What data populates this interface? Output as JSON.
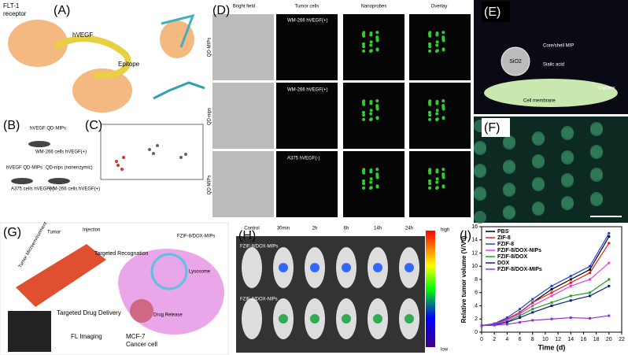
{
  "labels": [
    "(A)",
    "(B)",
    "(C)",
    "(D)",
    "(E)",
    "(F)",
    "(G)",
    "(H)",
    "(I)"
  ],
  "panel_a": {
    "receptor": [
      "FLT-1",
      "receptor"
    ],
    "ligand": "hVEGF",
    "epitope": "Epitope"
  },
  "panel_b": {
    "texts": [
      "hVEGF QD-MIPs",
      "WM-266 cells hVEGF(+)",
      "hVEGF QD-MIPs",
      "QD-nips (nonenzymic)",
      "A375 cells hVEGF(-)",
      "WM-266 cells hVEGF(+)"
    ]
  },
  "panel_d": {
    "columns": [
      "Bright field",
      "Tumor cells",
      "Nanoprobes",
      "Overlay"
    ],
    "rows": [
      "WM-266 hVEGF(+)",
      "WM-266 hVEGF(+)",
      "A375 hVEGF(-)"
    ],
    "probes": [
      "QD-MIPs",
      "QD-nips",
      "QD-MIPs"
    ]
  },
  "panel_e": {
    "texts": [
      "SiO2",
      "Core/shell MIP",
      "Sialic acid",
      "Glycans",
      "Cell membrane"
    ]
  },
  "panel_g": {
    "texts": [
      "Tumor",
      "Injection",
      "Tumor Microenvironment",
      "Targeted Recognation",
      "FZIF-8/DOX-MIPs",
      "Lysosome",
      "Drug Release",
      "Targeted Drug Delivery",
      "FL Imaging",
      "MCF-7",
      "Cancer cell"
    ]
  },
  "panel_h": {
    "times": [
      "Control",
      "30min",
      "2h",
      "6h",
      "14h",
      "24h"
    ],
    "groups": [
      "FZIF-8/DOX-MIPs",
      "FZIF-8/DOX-NIPs"
    ],
    "scale": [
      "high",
      "low"
    ]
  },
  "chart_data": {
    "type": "line",
    "xlabel": "Time (d)",
    "ylabel": "Relative tumor volume (V/V0)",
    "x": [
      0,
      2,
      4,
      6,
      8,
      11,
      14,
      17,
      20
    ],
    "xlim": [
      0,
      22
    ],
    "xticks": [
      0,
      2,
      4,
      6,
      8,
      10,
      12,
      14,
      16,
      18,
      20,
      22
    ],
    "ylim": [
      0,
      16
    ],
    "yticks": [
      0,
      2,
      4,
      6,
      8,
      10,
      12,
      14,
      16
    ],
    "legend": "upper left",
    "series": [
      {
        "name": "PBS",
        "color": "#000000",
        "values": [
          1,
          1.2,
          2,
          3,
          4.5,
          6.5,
          8,
          9.5,
          14.5
        ]
      },
      {
        "name": "ZIF-8",
        "color": "#e02020",
        "values": [
          1,
          1.2,
          2,
          3,
          4.5,
          6,
          7.5,
          9,
          13.5
        ]
      },
      {
        "name": "FZIF-8",
        "color": "#2040e0",
        "values": [
          1,
          1.3,
          2.2,
          3.5,
          5,
          7,
          8.5,
          10,
          15
        ]
      },
      {
        "name": "FZIF-8/DOX-NIPs",
        "color": "#e040e0",
        "values": [
          1,
          1.2,
          1.8,
          2.8,
          4,
          5.5,
          7,
          8,
          10.5
        ]
      },
      {
        "name": "FZIF-8/DOX",
        "color": "#20a020",
        "values": [
          1,
          1.1,
          1.6,
          2.5,
          3.5,
          4.5,
          5.5,
          6,
          8
        ]
      },
      {
        "name": "DOX",
        "color": "#102080",
        "values": [
          1,
          1.1,
          1.5,
          2.2,
          3,
          4,
          4.8,
          5.5,
          7
        ]
      },
      {
        "name": "FZIF-8/DOX-MIPs",
        "color": "#9030d0",
        "values": [
          1,
          1.05,
          1.2,
          1.5,
          1.8,
          2,
          2.2,
          2.1,
          2.5
        ]
      }
    ]
  }
}
